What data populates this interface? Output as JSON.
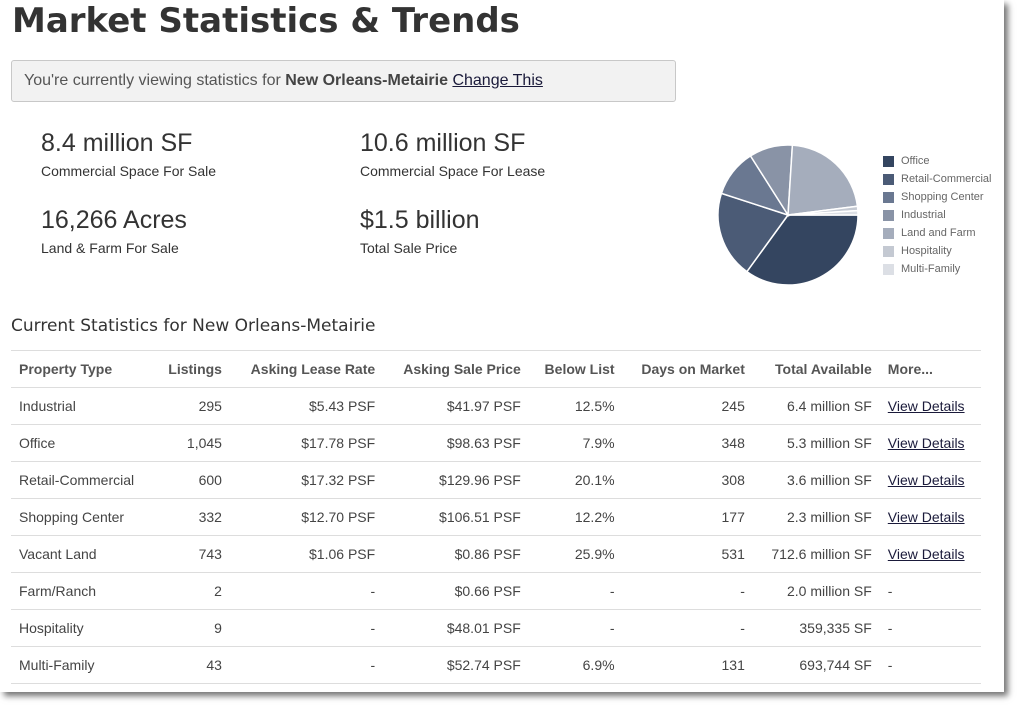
{
  "title": "Market Statistics & Trends",
  "market_bar": {
    "prefix": "You're currently viewing statistics for",
    "market": "New Orleans-Metairie",
    "change_link": "Change This"
  },
  "stats": [
    {
      "value": "8.4 million SF",
      "label": "Commercial Space For Sale"
    },
    {
      "value": "10.6 million SF",
      "label": "Commercial Space For Lease"
    },
    {
      "value": "16,266 Acres",
      "label": "Land & Farm For Sale"
    },
    {
      "value": "$1.5 billion",
      "label": "Total Sale Price"
    }
  ],
  "pie_legend": [
    {
      "label": "Office",
      "color": "#344560"
    },
    {
      "label": "Retail-Commercial",
      "color": "#4b5b76"
    },
    {
      "label": "Shopping Center",
      "color": "#6a7891"
    },
    {
      "label": "Industrial",
      "color": "#8993a6"
    },
    {
      "label": "Land and Farm",
      "color": "#a5adbc"
    },
    {
      "label": "Hospitality",
      "color": "#c4c9d2"
    },
    {
      "label": "Multi-Family",
      "color": "#dcdfe5"
    }
  ],
  "chart_data": {
    "type": "pie",
    "slices": [
      {
        "label": "Office",
        "percent": 35.0,
        "color": "#344560"
      },
      {
        "label": "Retail-Commercial",
        "percent": 20.0,
        "color": "#4b5b76"
      },
      {
        "label": "Shopping Center",
        "percent": 11.0,
        "color": "#6a7891"
      },
      {
        "label": "Industrial",
        "percent": 10.0,
        "color": "#8993a6"
      },
      {
        "label": "Land and Farm",
        "percent": 22.0,
        "color": "#a5adbc"
      },
      {
        "label": "Hospitality",
        "percent": 1.0,
        "color": "#c4c9d2"
      },
      {
        "label": "Multi-Family",
        "percent": 1.0,
        "color": "#dcdfe5"
      }
    ]
  },
  "section_title": "Current Statistics for New Orleans-Metairie",
  "table": {
    "headers": [
      "Property Type",
      "Listings",
      "Asking Lease Rate",
      "Asking Sale Price",
      "Below List",
      "Days on Market",
      "Total Available",
      "More..."
    ],
    "rows": [
      [
        "Industrial",
        "295",
        "$5.43 PSF",
        "$41.97 PSF",
        "12.5%",
        "245",
        "6.4 million SF",
        "View Details"
      ],
      [
        "Office",
        "1,045",
        "$17.78 PSF",
        "$98.63 PSF",
        "7.9%",
        "348",
        "5.3 million SF",
        "View Details"
      ],
      [
        "Retail-Commercial",
        "600",
        "$17.32 PSF",
        "$129.96 PSF",
        "20.1%",
        "308",
        "3.6 million SF",
        "View Details"
      ],
      [
        "Shopping Center",
        "332",
        "$12.70 PSF",
        "$106.51 PSF",
        "12.2%",
        "177",
        "2.3 million SF",
        "View Details"
      ],
      [
        "Vacant Land",
        "743",
        "$1.06 PSF",
        "$0.86 PSF",
        "25.9%",
        "531",
        "712.6 million SF",
        "View Details"
      ],
      [
        "Farm/Ranch",
        "2",
        "-",
        "$0.66 PSF",
        "-",
        "-",
        "2.0 million SF",
        "-"
      ],
      [
        "Hospitality",
        "9",
        "-",
        "$48.01 PSF",
        "-",
        "-",
        "359,335 SF",
        "-"
      ],
      [
        "Multi-Family",
        "43",
        "-",
        "$52.74 PSF",
        "6.9%",
        "131",
        "693,744 SF",
        "-"
      ]
    ]
  }
}
